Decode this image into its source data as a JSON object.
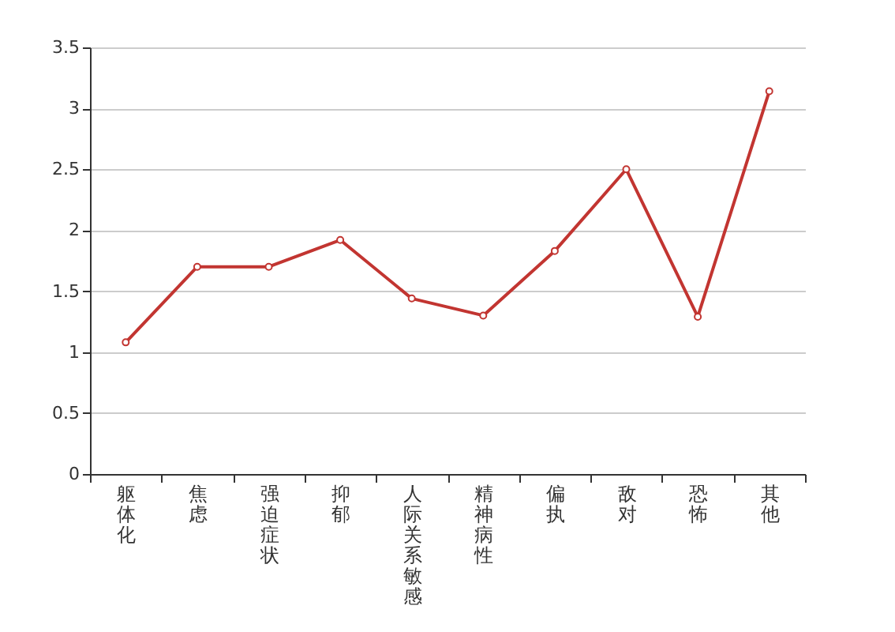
{
  "chart_data": {
    "type": "line",
    "categories": [
      "躯体化",
      "焦虑",
      "强迫症状",
      "抑郁",
      "人际关系敏感",
      "精神病性",
      "偏执",
      "敌对",
      "恐怖",
      "其他"
    ],
    "series": [
      {
        "color": "#c23531",
        "values": [
          1.08,
          1.7,
          1.7,
          1.92,
          1.44,
          1.3,
          1.83,
          2.5,
          1.29,
          3.14
        ]
      }
    ],
    "ylim": [
      0,
      3.5
    ],
    "yticks": [
      0,
      0.5,
      1,
      1.5,
      2,
      2.5,
      3,
      3.5
    ],
    "grid": "y",
    "marker": "circle",
    "line_style": "solid"
  }
}
